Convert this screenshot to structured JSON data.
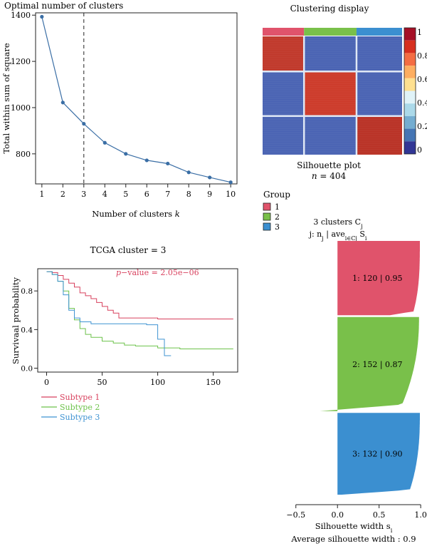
{
  "chart_data": [
    {
      "type": "line",
      "title": "Optimal number of clusters",
      "xlabel": "Number of clusters k",
      "ylabel": "Total within sum of square",
      "x": [
        1,
        2,
        3,
        4,
        5,
        6,
        7,
        8,
        9,
        10
      ],
      "values": [
        1393,
        1022,
        930,
        848,
        800,
        772,
        758,
        720,
        698,
        677
      ],
      "xlim": [
        0.7,
        10.3
      ],
      "ylim": [
        670,
        1410
      ],
      "yticks": [
        800,
        1000,
        1200,
        1400
      ],
      "optimal_k": 3,
      "color": "#3a6ea5"
    },
    {
      "type": "heatmap",
      "title": "Clustering display",
      "subtitle": "Silhouette plot",
      "n_label": "n = 404",
      "n": 404,
      "cluster_sizes": [
        120,
        152,
        132
      ],
      "cluster_colors": [
        "#e0536b",
        "#79c04a",
        "#3b8fd0"
      ],
      "colorbar_ticks": [
        "1",
        "0.8",
        "0.6",
        "0.4",
        "0.2",
        "0"
      ],
      "colorbar_colors": [
        "#a50f26",
        "#d7301f",
        "#f46d43",
        "#fdae61",
        "#fee090",
        "#e0f3f8",
        "#abd9e9",
        "#74add1",
        "#4575b4",
        "#313695"
      ],
      "legend_title": "Group",
      "legend_items": [
        "1",
        "2",
        "3"
      ]
    },
    {
      "type": "line",
      "title": "TCGA cluster = 3",
      "ylabel": "Survivaal probability",
      "pvalue_label": "p−value = 2.05e−06",
      "xlim": [
        -8,
        172
      ],
      "ylim": [
        -0.04,
        1.03
      ],
      "xticks": [
        0,
        50,
        100,
        150
      ],
      "yticks": [
        "0.0",
        "0.4",
        "0.8"
      ],
      "series": [
        {
          "name": "Subtype 1",
          "color": "#d8415e",
          "x": [
            0,
            5,
            10,
            15,
            20,
            25,
            30,
            35,
            40,
            45,
            50,
            55,
            60,
            65,
            70,
            80,
            100,
            120,
            168
          ],
          "y": [
            1.0,
            0.99,
            0.96,
            0.92,
            0.88,
            0.84,
            0.78,
            0.75,
            0.72,
            0.68,
            0.64,
            0.6,
            0.57,
            0.52,
            0.52,
            0.52,
            0.51,
            0.51,
            0.51
          ]
        },
        {
          "name": "Subtype 2",
          "color": "#6cc24a",
          "x": [
            0,
            5,
            10,
            15,
            20,
            25,
            30,
            35,
            40,
            50,
            60,
            70,
            80,
            100,
            120,
            168
          ],
          "y": [
            1.0,
            0.97,
            0.9,
            0.8,
            0.62,
            0.5,
            0.41,
            0.35,
            0.32,
            0.28,
            0.26,
            0.24,
            0.23,
            0.21,
            0.2,
            0.2
          ]
        },
        {
          "name": "Subtype 3",
          "color": "#3f93d2",
          "x": [
            0,
            5,
            10,
            15,
            20,
            25,
            30,
            40,
            60,
            80,
            90,
            100,
            106,
            112
          ],
          "y": [
            1.0,
            0.97,
            0.9,
            0.76,
            0.6,
            0.52,
            0.48,
            0.46,
            0.46,
            0.46,
            0.45,
            0.3,
            0.13,
            0.13
          ]
        }
      ]
    },
    {
      "type": "bar",
      "title": "3 clusters Cj",
      "subtitle": "j: nj | avei∈Cj Si",
      "xlabel": "Silhouette width si",
      "footer": "Average silhouette width : 0.9",
      "xlim": [
        -0.78,
        1.05
      ],
      "xticks": [
        "−0.5",
        "0.0",
        "0.5",
        "1.0"
      ],
      "clusters": [
        {
          "label": "1: 120 | 0.95",
          "n": 120,
          "avg": 0.95,
          "color": "#e0536b"
        },
        {
          "label": "2: 152 | 0.87",
          "n": 152,
          "avg": 0.87,
          "color": "#79c04a"
        },
        {
          "label": "3: 132 | 0.90",
          "n": 132,
          "avg": 0.9,
          "color": "#3b8fd0"
        }
      ]
    }
  ]
}
